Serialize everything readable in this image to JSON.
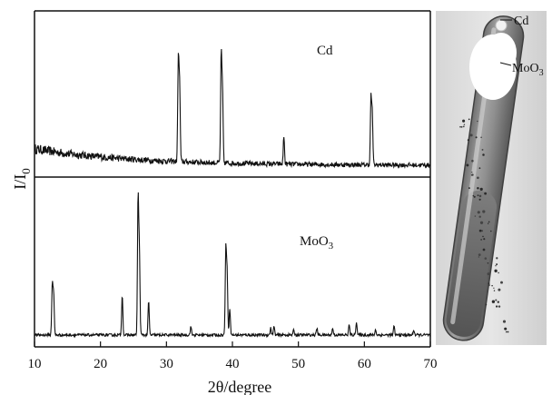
{
  "chart_data": [
    {
      "type": "line",
      "panel": "top",
      "label": "Cd",
      "xlabel": "2θ/degree",
      "ylabel": "I/I",
      "ylabel_sub": "0",
      "xlim": [
        10,
        70
      ],
      "xticks": [
        10,
        20,
        30,
        40,
        50,
        60,
        70
      ],
      "ylim": [
        0,
        1
      ],
      "baseline": {
        "start": 0.17,
        "end": 0.07,
        "decay": 15,
        "noise": 0.03
      },
      "peaks": [
        {
          "x": 31.8,
          "y": 0.62
        },
        {
          "x": 32.0,
          "y": 0.46
        },
        {
          "x": 38.3,
          "y": 0.65
        },
        {
          "x": 38.5,
          "y": 0.42
        },
        {
          "x": 47.8,
          "y": 0.17
        },
        {
          "x": 61.0,
          "y": 0.4
        },
        {
          "x": 61.2,
          "y": 0.3
        }
      ]
    },
    {
      "type": "line",
      "panel": "bottom",
      "label": "MoO",
      "label_sub": "3",
      "xlim": [
        10,
        70
      ],
      "ylim": [
        0,
        1
      ],
      "baseline": {
        "start": 0.07,
        "end": 0.07,
        "decay": 0,
        "noise": 0.008
      },
      "peaks": [
        {
          "x": 12.7,
          "y": 0.3
        },
        {
          "x": 12.9,
          "y": 0.24
        },
        {
          "x": 23.3,
          "y": 0.24
        },
        {
          "x": 25.7,
          "y": 0.81
        },
        {
          "x": 25.9,
          "y": 0.48
        },
        {
          "x": 27.3,
          "y": 0.2
        },
        {
          "x": 33.7,
          "y": 0.05
        },
        {
          "x": 39.0,
          "y": 0.51
        },
        {
          "x": 39.2,
          "y": 0.36
        },
        {
          "x": 39.6,
          "y": 0.16
        },
        {
          "x": 45.8,
          "y": 0.04
        },
        {
          "x": 46.3,
          "y": 0.05
        },
        {
          "x": 49.3,
          "y": 0.03
        },
        {
          "x": 52.8,
          "y": 0.04
        },
        {
          "x": 55.2,
          "y": 0.04
        },
        {
          "x": 57.7,
          "y": 0.06
        },
        {
          "x": 58.8,
          "y": 0.08
        },
        {
          "x": 61.7,
          "y": 0.03
        },
        {
          "x": 64.5,
          "y": 0.05
        },
        {
          "x": 67.5,
          "y": 0.03
        }
      ]
    }
  ],
  "photo": {
    "label_cd": "Cd",
    "label_moo3": "MoO",
    "label_moo3_sub": "3"
  }
}
